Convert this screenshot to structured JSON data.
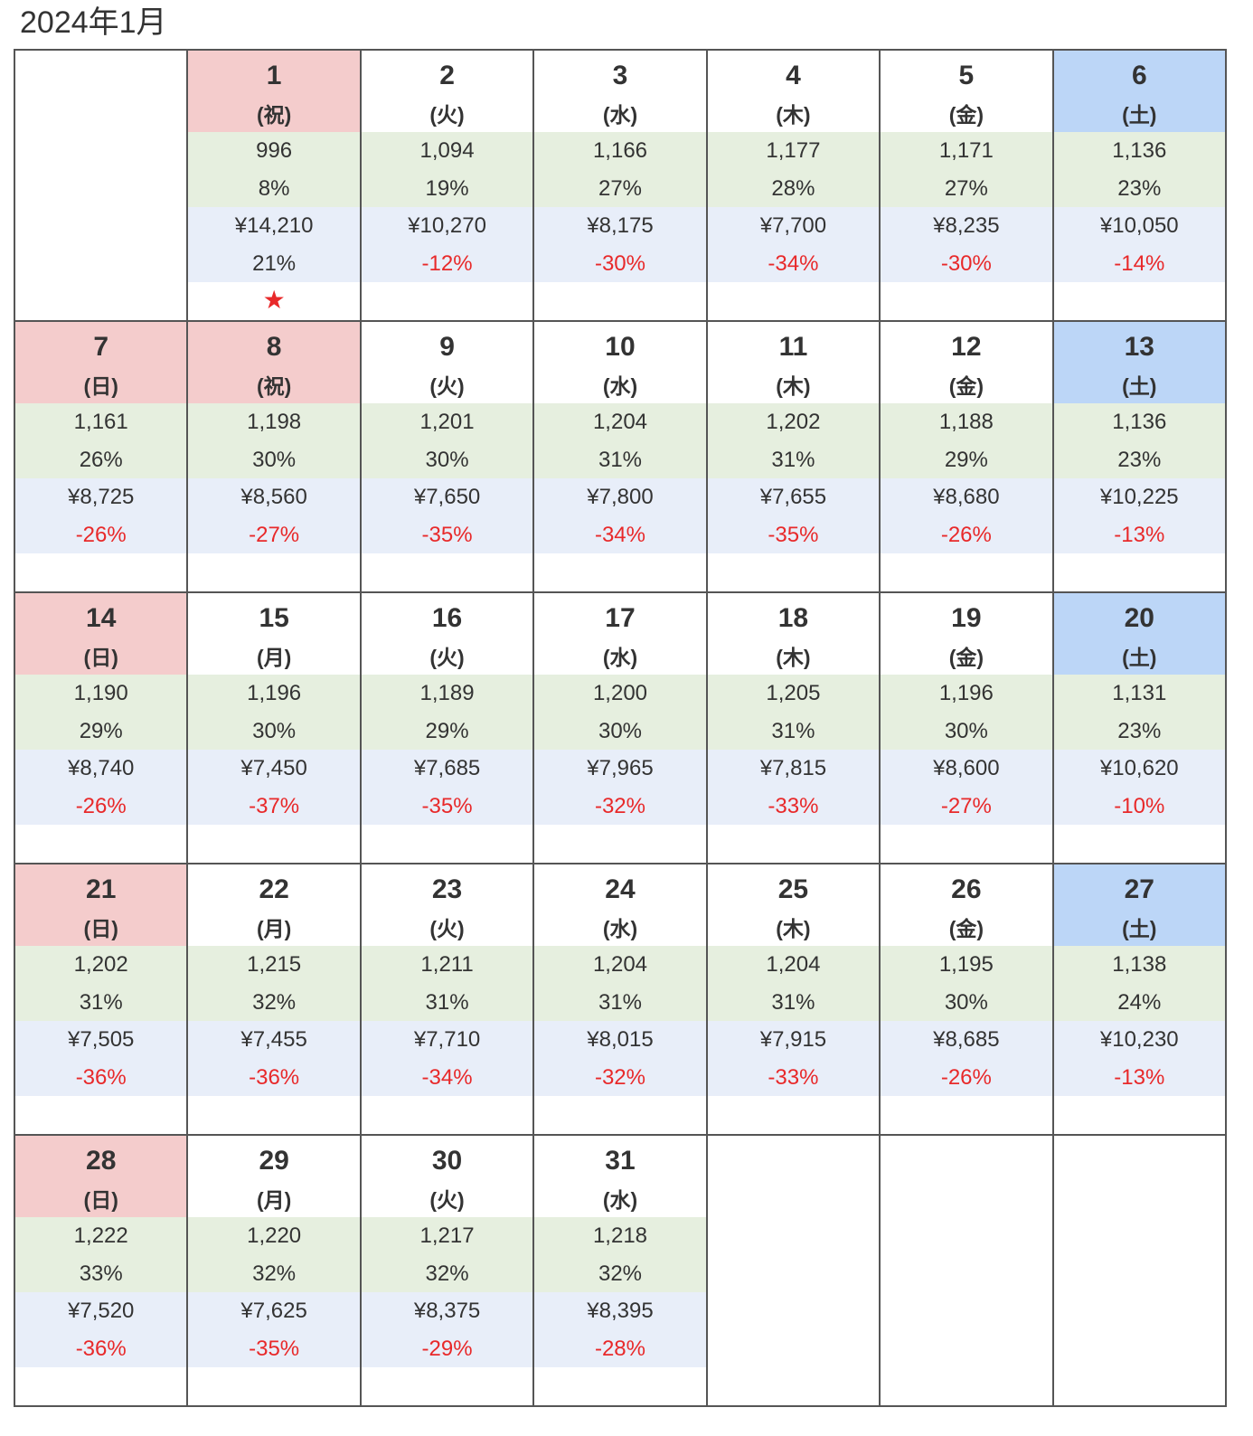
{
  "calendar": {
    "title": "2024年1月",
    "colors": {
      "band_count": "#e6efdf",
      "band_price": "#e8eef9",
      "negative": "#e8292a",
      "star": "#e8292a"
    },
    "weeks": [
      [
        null,
        {
          "day": "1",
          "weekday": "(祝)",
          "count": "996",
          "ratio": "8%",
          "price": "¥14,210",
          "change": "21%",
          "star": "★",
          "highlight": "#f4cccc"
        },
        {
          "day": "2",
          "weekday": "(火)",
          "count": "1,094",
          "ratio": "19%",
          "price": "¥10,270",
          "change": "-12%",
          "change_color": "#e8292a"
        },
        {
          "day": "3",
          "weekday": "(水)",
          "count": "1,166",
          "ratio": "27%",
          "price": "¥8,175",
          "change": "-30%",
          "change_color": "#e8292a"
        },
        {
          "day": "4",
          "weekday": "(木)",
          "count": "1,177",
          "ratio": "28%",
          "price": "¥7,700",
          "change": "-34%",
          "change_color": "#e8292a"
        },
        {
          "day": "5",
          "weekday": "(金)",
          "count": "1,171",
          "ratio": "27%",
          "price": "¥8,235",
          "change": "-30%",
          "change_color": "#e8292a"
        },
        {
          "day": "6",
          "weekday": "(土)",
          "count": "1,136",
          "ratio": "23%",
          "price": "¥10,050",
          "change": "-14%",
          "change_color": "#e8292a",
          "highlight": "#bcd6f7"
        }
      ],
      [
        {
          "day": "7",
          "weekday": "(日)",
          "count": "1,161",
          "ratio": "26%",
          "price": "¥8,725",
          "change": "-26%",
          "change_color": "#e8292a",
          "highlight": "#f4cccc"
        },
        {
          "day": "8",
          "weekday": "(祝)",
          "count": "1,198",
          "ratio": "30%",
          "price": "¥8,560",
          "change": "-27%",
          "change_color": "#e8292a",
          "highlight": "#f4cccc"
        },
        {
          "day": "9",
          "weekday": "(火)",
          "count": "1,201",
          "ratio": "30%",
          "price": "¥7,650",
          "change": "-35%",
          "change_color": "#e8292a"
        },
        {
          "day": "10",
          "weekday": "(水)",
          "count": "1,204",
          "ratio": "31%",
          "price": "¥7,800",
          "change": "-34%",
          "change_color": "#e8292a"
        },
        {
          "day": "11",
          "weekday": "(木)",
          "count": "1,202",
          "ratio": "31%",
          "price": "¥7,655",
          "change": "-35%",
          "change_color": "#e8292a"
        },
        {
          "day": "12",
          "weekday": "(金)",
          "count": "1,188",
          "ratio": "29%",
          "price": "¥8,680",
          "change": "-26%",
          "change_color": "#e8292a"
        },
        {
          "day": "13",
          "weekday": "(土)",
          "count": "1,136",
          "ratio": "23%",
          "price": "¥10,225",
          "change": "-13%",
          "change_color": "#e8292a",
          "highlight": "#bcd6f7"
        }
      ],
      [
        {
          "day": "14",
          "weekday": "(日)",
          "count": "1,190",
          "ratio": "29%",
          "price": "¥8,740",
          "change": "-26%",
          "change_color": "#e8292a",
          "highlight": "#f4cccc"
        },
        {
          "day": "15",
          "weekday": "(月)",
          "count": "1,196",
          "ratio": "30%",
          "price": "¥7,450",
          "change": "-37%",
          "change_color": "#e8292a"
        },
        {
          "day": "16",
          "weekday": "(火)",
          "count": "1,189",
          "ratio": "29%",
          "price": "¥7,685",
          "change": "-35%",
          "change_color": "#e8292a"
        },
        {
          "day": "17",
          "weekday": "(水)",
          "count": "1,200",
          "ratio": "30%",
          "price": "¥7,965",
          "change": "-32%",
          "change_color": "#e8292a"
        },
        {
          "day": "18",
          "weekday": "(木)",
          "count": "1,205",
          "ratio": "31%",
          "price": "¥7,815",
          "change": "-33%",
          "change_color": "#e8292a"
        },
        {
          "day": "19",
          "weekday": "(金)",
          "count": "1,196",
          "ratio": "30%",
          "price": "¥8,600",
          "change": "-27%",
          "change_color": "#e8292a"
        },
        {
          "day": "20",
          "weekday": "(土)",
          "count": "1,131",
          "ratio": "23%",
          "price": "¥10,620",
          "change": "-10%",
          "change_color": "#e8292a",
          "highlight": "#bcd6f7"
        }
      ],
      [
        {
          "day": "21",
          "weekday": "(日)",
          "count": "1,202",
          "ratio": "31%",
          "price": "¥7,505",
          "change": "-36%",
          "change_color": "#e8292a",
          "highlight": "#f4cccc"
        },
        {
          "day": "22",
          "weekday": "(月)",
          "count": "1,215",
          "ratio": "32%",
          "price": "¥7,455",
          "change": "-36%",
          "change_color": "#e8292a"
        },
        {
          "day": "23",
          "weekday": "(火)",
          "count": "1,211",
          "ratio": "31%",
          "price": "¥7,710",
          "change": "-34%",
          "change_color": "#e8292a"
        },
        {
          "day": "24",
          "weekday": "(水)",
          "count": "1,204",
          "ratio": "31%",
          "price": "¥8,015",
          "change": "-32%",
          "change_color": "#e8292a"
        },
        {
          "day": "25",
          "weekday": "(木)",
          "count": "1,204",
          "ratio": "31%",
          "price": "¥7,915",
          "change": "-33%",
          "change_color": "#e8292a"
        },
        {
          "day": "26",
          "weekday": "(金)",
          "count": "1,195",
          "ratio": "30%",
          "price": "¥8,685",
          "change": "-26%",
          "change_color": "#e8292a"
        },
        {
          "day": "27",
          "weekday": "(土)",
          "count": "1,138",
          "ratio": "24%",
          "price": "¥10,230",
          "change": "-13%",
          "change_color": "#e8292a",
          "highlight": "#bcd6f7"
        }
      ],
      [
        {
          "day": "28",
          "weekday": "(日)",
          "count": "1,222",
          "ratio": "33%",
          "price": "¥7,520",
          "change": "-36%",
          "change_color": "#e8292a",
          "highlight": "#f4cccc"
        },
        {
          "day": "29",
          "weekday": "(月)",
          "count": "1,220",
          "ratio": "32%",
          "price": "¥7,625",
          "change": "-35%",
          "change_color": "#e8292a"
        },
        {
          "day": "30",
          "weekday": "(火)",
          "count": "1,217",
          "ratio": "32%",
          "price": "¥8,375",
          "change": "-29%",
          "change_color": "#e8292a"
        },
        {
          "day": "31",
          "weekday": "(水)",
          "count": "1,218",
          "ratio": "32%",
          "price": "¥8,395",
          "change": "-28%",
          "change_color": "#e8292a"
        },
        null,
        null,
        null
      ]
    ]
  }
}
